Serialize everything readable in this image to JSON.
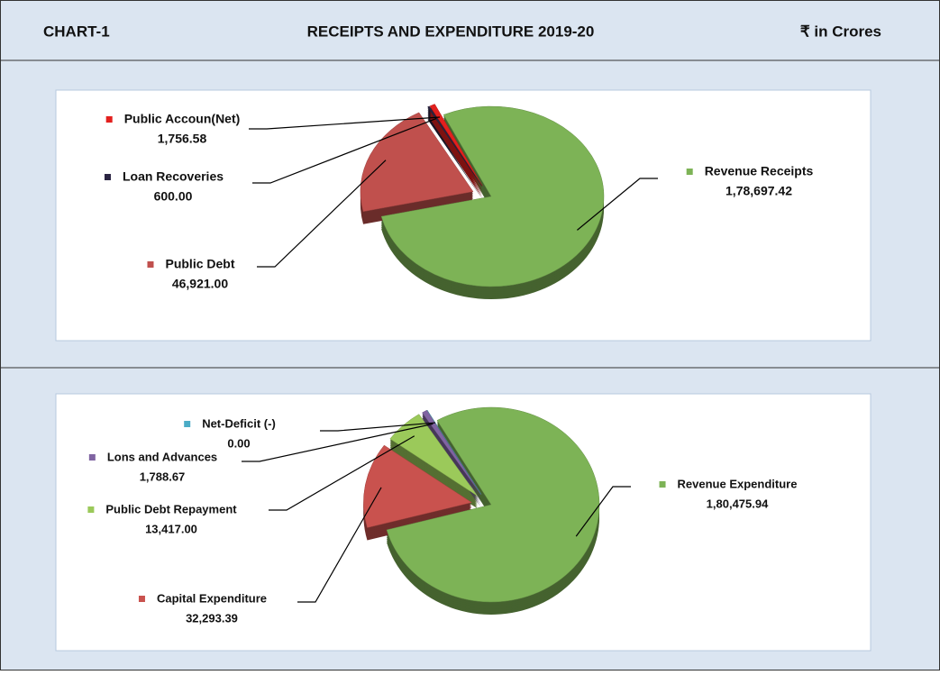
{
  "header": {
    "label": "CHART-1",
    "title": "RECEIPTS AND EXPENDITURE 2019-20",
    "unit": "₹ in Crores"
  },
  "chart_data": [
    {
      "type": "pie",
      "categories": [
        "Revenue Receipts",
        "Public Debt",
        "Loan Recoveries",
        "Public Accoun(Net)"
      ],
      "values": [
        178697.42,
        46921,
        600,
        1756.58
      ],
      "value_labels": [
        "1,78,697.42",
        "46,921.00",
        "600.00",
        "1,756.58"
      ],
      "colors": [
        "#7db356",
        "#c0504d",
        "#2b2442",
        "#e3201e"
      ]
    },
    {
      "type": "pie",
      "categories": [
        "Revenue  Expenditure",
        "Capital Expenditure",
        "Public Debt Repayment",
        "Lons and Advances",
        "Net-Deficit (-)"
      ],
      "values": [
        180475.94,
        32293.39,
        13417,
        1788.67,
        0
      ],
      "value_labels": [
        "1,80,475.94",
        "32,293.39",
        "13,417.00",
        "1,788.67",
        "0.00"
      ],
      "colors": [
        "#7db356",
        "#c9524e",
        "#9bc95a",
        "#8064a2",
        "#4bacc6"
      ]
    }
  ]
}
